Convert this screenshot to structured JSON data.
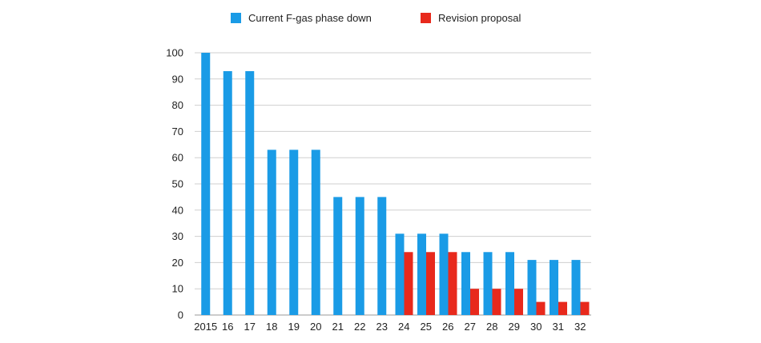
{
  "chart_data": {
    "type": "bar",
    "categories": [
      "2015",
      "16",
      "17",
      "18",
      "19",
      "20",
      "21",
      "22",
      "23",
      "24",
      "25",
      "26",
      "27",
      "28",
      "29",
      "30",
      "31",
      "32"
    ],
    "series": [
      {
        "name": "Current F-gas phase down",
        "color": "#1a9be6",
        "values": [
          100,
          93,
          93,
          63,
          63,
          63,
          45,
          45,
          45,
          31,
          31,
          31,
          24,
          24,
          24,
          21,
          21,
          21
        ]
      },
      {
        "name": "Revision proposal",
        "color": "#e8291c",
        "values": [
          null,
          null,
          null,
          null,
          null,
          null,
          null,
          null,
          null,
          24,
          24,
          24,
          10,
          10,
          10,
          5,
          5,
          5
        ]
      }
    ],
    "ylim": [
      0,
      100
    ],
    "yticks": [
      0,
      10,
      20,
      30,
      40,
      50,
      60,
      70,
      80,
      90,
      100
    ],
    "grid": true,
    "legend_position": "top-center"
  }
}
